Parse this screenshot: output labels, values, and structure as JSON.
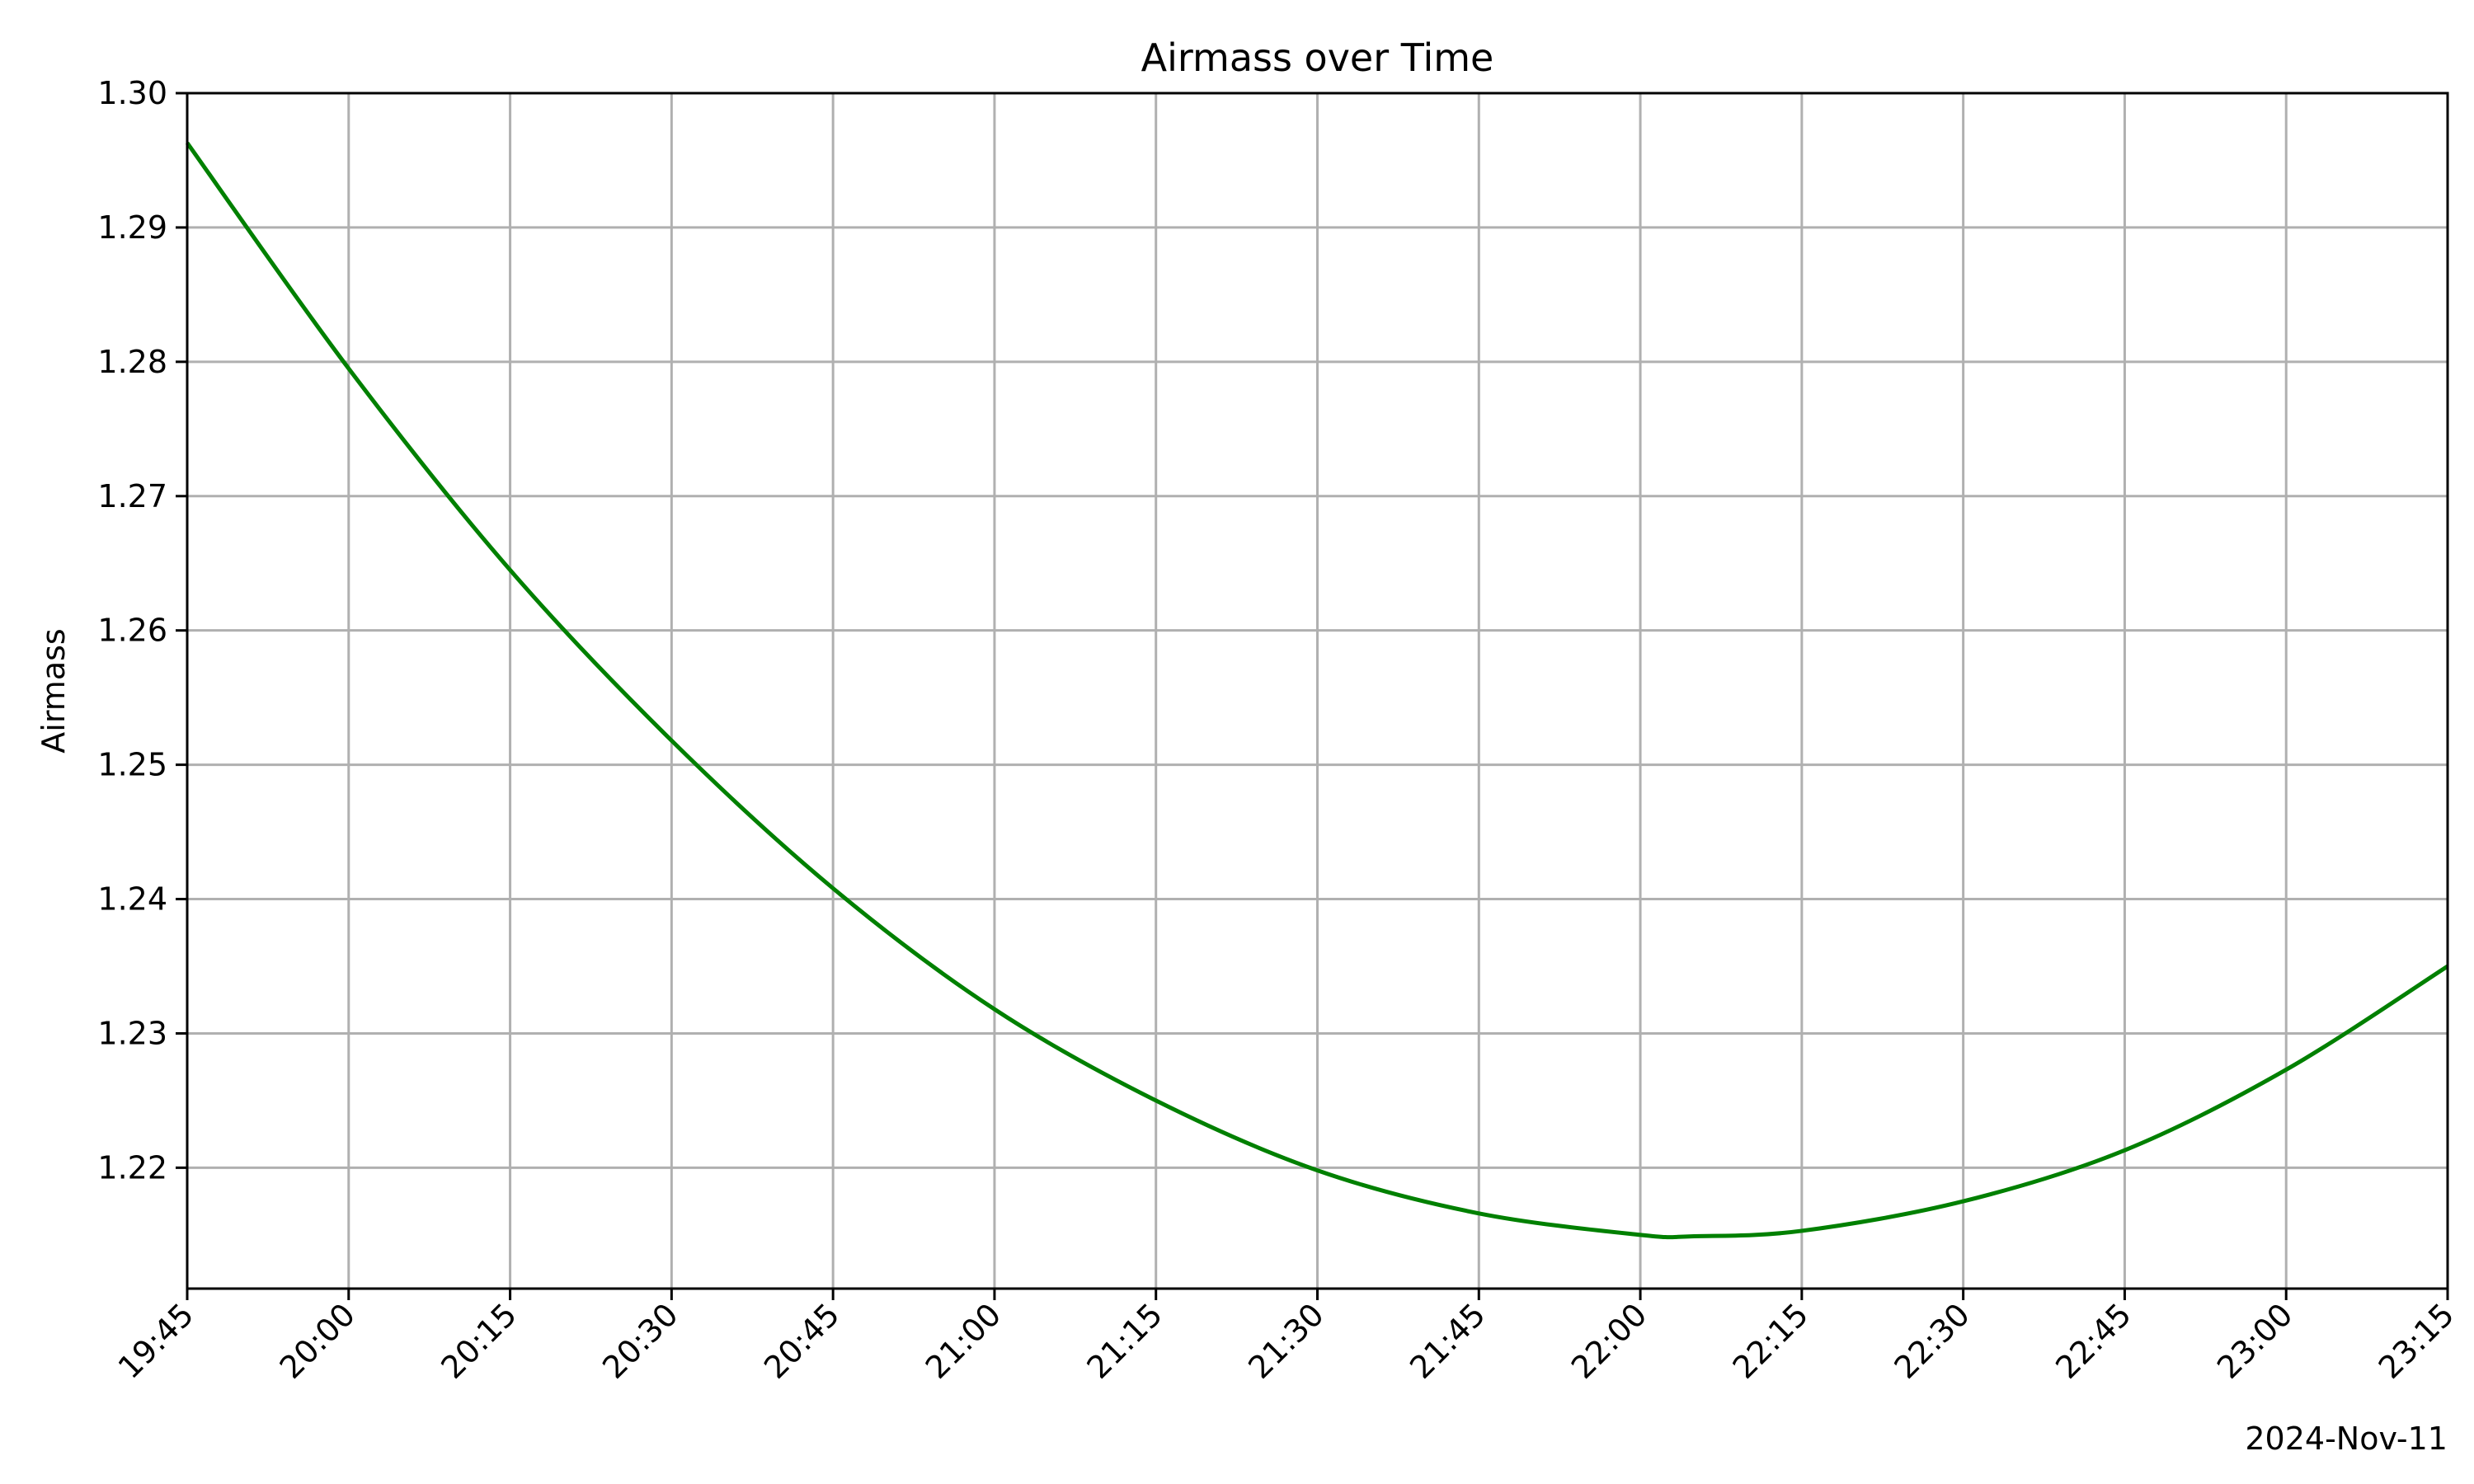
{
  "chart_data": {
    "type": "line",
    "title": "Airmass over Time",
    "xlabel": "",
    "ylabel": "Airmass",
    "x_date_label": "2024-Nov-11",
    "x_ticks": [
      "19:45",
      "20:00",
      "20:15",
      "20:30",
      "20:45",
      "21:00",
      "21:15",
      "21:30",
      "21:45",
      "22:00",
      "22:15",
      "22:30",
      "22:45",
      "23:00",
      "23:15"
    ],
    "xlim": [
      "19:45",
      "23:15"
    ],
    "y_ticks": [
      "1.22",
      "1.23",
      "1.24",
      "1.25",
      "1.26",
      "1.27",
      "1.28",
      "1.29",
      "1.30"
    ],
    "ylim": [
      1.211,
      1.3
    ],
    "grid": true,
    "series": [
      {
        "color": "#008000",
        "x": [
          "19:45",
          "20:00",
          "20:15",
          "20:30",
          "20:45",
          "21:00",
          "21:15",
          "21:30",
          "21:45",
          "22:00",
          "22:05",
          "22:15",
          "22:30",
          "22:45",
          "23:00",
          "23:15"
        ],
        "y": [
          1.2963,
          1.2795,
          1.2645,
          1.2518,
          1.2408,
          1.2318,
          1.225,
          1.2198,
          1.2166,
          1.215,
          1.2149,
          1.2153,
          1.2175,
          1.2213,
          1.2273,
          1.235
        ]
      }
    ]
  }
}
